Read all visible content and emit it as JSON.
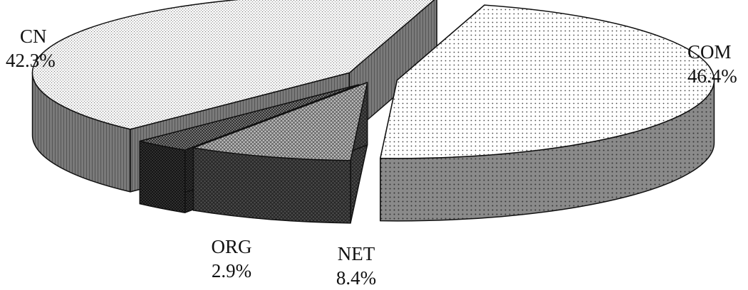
{
  "chart_data": {
    "type": "pie",
    "title": "",
    "style": "3d-exploded",
    "slices": [
      {
        "label": "COM",
        "value": 46.4,
        "display": "46.4%",
        "pattern": "light-dots"
      },
      {
        "label": "NET",
        "value": 8.4,
        "display": "8.4%",
        "pattern": "medium-crosshatch"
      },
      {
        "label": "ORG",
        "value": 2.9,
        "display": "2.9%",
        "pattern": "dark-crosshatch"
      },
      {
        "label": "CN",
        "value": 42.3,
        "display": "42.3%",
        "pattern": "light-stipple"
      }
    ]
  }
}
